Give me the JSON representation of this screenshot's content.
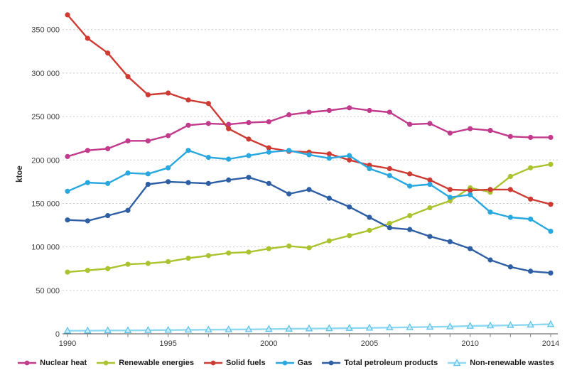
{
  "page": {
    "background": "#ffffff"
  },
  "axis_style": {
    "axis_color": "#4d4d4d",
    "tick_color": "#808080",
    "grid_color": "#cbcbcb",
    "tick_label_color": "#404040",
    "legend_text_color": "#1a1a1a"
  },
  "chart_data": {
    "type": "line",
    "title": "",
    "xlabel": "",
    "ylabel": "ktoe",
    "x": [
      1990,
      1991,
      1992,
      1993,
      1994,
      1995,
      1996,
      1997,
      1998,
      1999,
      2000,
      2001,
      2002,
      2003,
      2004,
      2005,
      2006,
      2007,
      2008,
      2009,
      2010,
      2011,
      2012,
      2013,
      2014
    ],
    "x_tick_labels": [
      "1990",
      "1995",
      "2000",
      "2005",
      "2010",
      "2014"
    ],
    "x_tick_label_years": [
      1990,
      1995,
      2000,
      2005,
      2010,
      2014
    ],
    "ylim": [
      0,
      350000
    ],
    "ytick_step": 50000,
    "ytick_values": [
      0,
      50000,
      100000,
      150000,
      200000,
      250000,
      300000,
      350000
    ],
    "ytick_labels": [
      "0",
      "50 000",
      "100 000",
      "150 000",
      "200 000",
      "250 000",
      "300 000",
      "350 000"
    ],
    "grid": "horizontal-dotted",
    "legend_position": "bottom",
    "series": [
      {
        "name": "Nuclear heat",
        "color": "#C13A8C",
        "marker": "circle",
        "values": [
          204000,
          211000,
          213000,
          222000,
          222000,
          228000,
          240000,
          242000,
          241000,
          243000,
          244000,
          252000,
          255000,
          257000,
          260000,
          257000,
          255000,
          241000,
          242000,
          231000,
          236000,
          234000,
          227000,
          226000,
          226000
        ]
      },
      {
        "name": "Renewable energies",
        "color": "#ABC32E",
        "marker": "circle",
        "values": [
          71000,
          73000,
          75000,
          80000,
          81000,
          83000,
          87000,
          90000,
          93000,
          94000,
          98000,
          101000,
          99000,
          107000,
          113000,
          119000,
          127000,
          136000,
          145000,
          153000,
          168000,
          163000,
          181000,
          191000,
          195000
        ]
      },
      {
        "name": "Solid fuels",
        "color": "#CE3B33",
        "marker": "circle",
        "values": [
          367000,
          340000,
          323000,
          296000,
          275000,
          277000,
          269000,
          265000,
          236000,
          224000,
          214000,
          210000,
          209000,
          207000,
          200000,
          194000,
          190000,
          184000,
          177000,
          166000,
          165000,
          166000,
          166000,
          155000,
          149000
        ]
      },
      {
        "name": "Gas",
        "color": "#29A8E0",
        "marker": "circle",
        "values": [
          164000,
          174000,
          173000,
          185000,
          184000,
          191000,
          211000,
          203000,
          201000,
          205000,
          209000,
          211000,
          206000,
          202000,
          205000,
          190000,
          182000,
          170000,
          172000,
          157000,
          160000,
          140000,
          134000,
          132000,
          118000
        ]
      },
      {
        "name": "Total petroleum products",
        "color": "#2E5FA5",
        "marker": "circle",
        "values": [
          131000,
          130000,
          136000,
          142000,
          172000,
          175000,
          174000,
          173000,
          177000,
          180000,
          173000,
          161000,
          166000,
          156000,
          146000,
          134000,
          122000,
          120000,
          112000,
          106000,
          98000,
          85000,
          77000,
          72000,
          70000
        ]
      },
      {
        "name": "Non-renewable wastes",
        "color": "#8ED9F2",
        "marker": "triangle",
        "marker_fill": "#C9ECFA",
        "marker_stroke": "#5BC2EA",
        "values": [
          3500,
          3600,
          3800,
          3900,
          4100,
          4300,
          4500,
          4700,
          4900,
          5100,
          5400,
          5700,
          6000,
          6200,
          6500,
          6800,
          7200,
          7500,
          7900,
          8300,
          9000,
          9400,
          9800,
          10400,
          11000
        ]
      }
    ]
  }
}
